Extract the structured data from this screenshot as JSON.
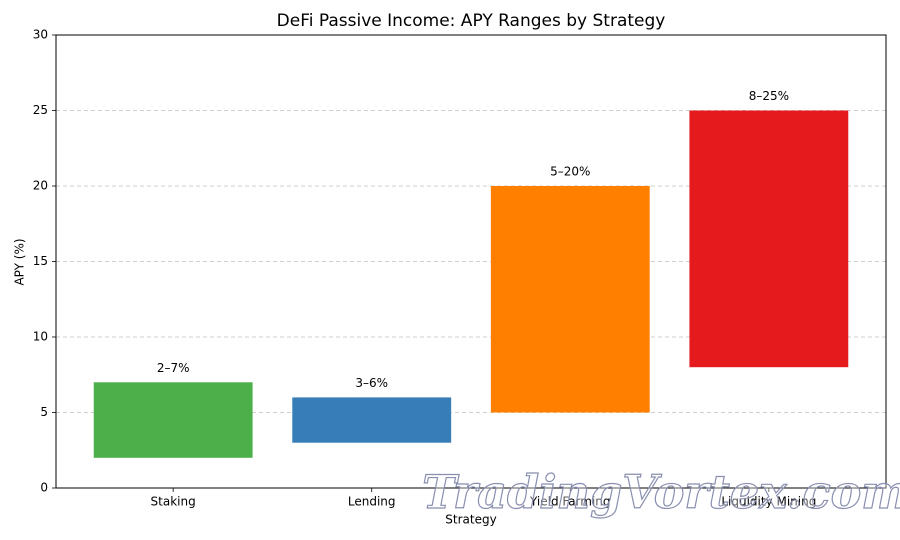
{
  "chart_data": {
    "type": "range-bar",
    "title": "DeFi Passive Income: APY Ranges by Strategy",
    "x_label": "Strategy",
    "y_label": "APY (%)",
    "categories": [
      "Staking",
      "Lending",
      "Yield Farming",
      "Liquidity Mining"
    ],
    "low": [
      2,
      3,
      5,
      8
    ],
    "high": [
      7,
      6,
      20,
      25
    ],
    "value_labels": [
      "2–7%",
      "3–6%",
      "5–20%",
      "8–25%"
    ],
    "colors": [
      "#4daf4a",
      "#377eb8",
      "#ff7f00",
      "#e41a1c"
    ],
    "ylim": [
      0,
      30
    ],
    "yticks": [
      0,
      5,
      10,
      15,
      20,
      25,
      30
    ],
    "grid": true,
    "watermark": "TradingVortex.com"
  }
}
